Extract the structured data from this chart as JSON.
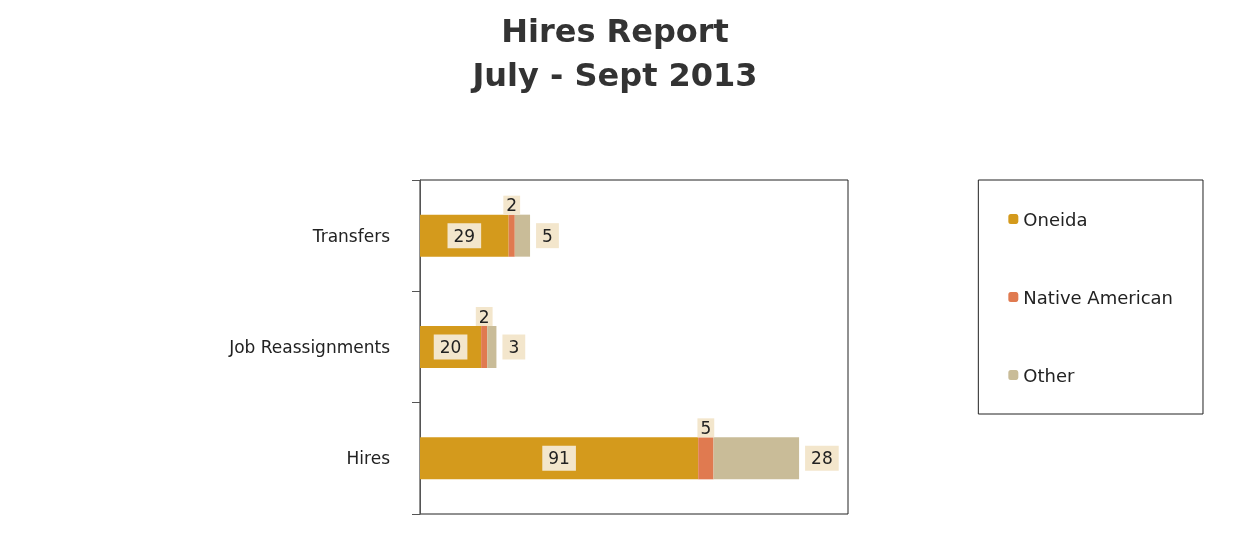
{
  "chart_data": {
    "type": "bar",
    "title": "Hires Report",
    "subtitle": "July - Sept 2013",
    "categories": [
      "Transfers",
      "Job Reassignments",
      "Hires"
    ],
    "orientation": "horizontal",
    "stacked": true,
    "data_labels": true,
    "legend": "right",
    "series": [
      {
        "name": "Oneida",
        "color": "#d49a1c",
        "values": [
          29,
          20,
          91
        ]
      },
      {
        "name": "Native American",
        "color": "#e07a50",
        "values": [
          2,
          2,
          5
        ]
      },
      {
        "name": "Other",
        "color": "#c9bc98",
        "values": [
          5,
          3,
          28
        ]
      }
    ]
  }
}
